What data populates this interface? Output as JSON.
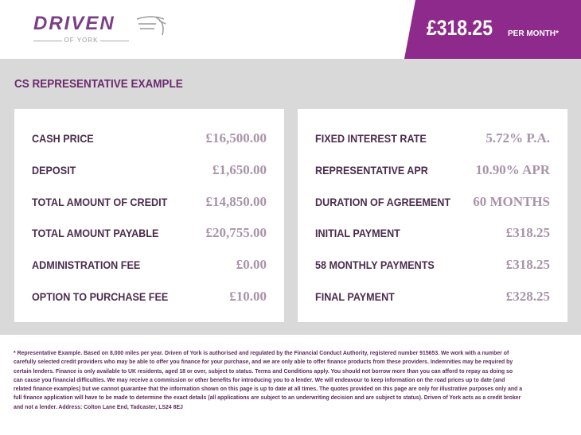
{
  "brand": {
    "name": "DRIVEN",
    "sub": "OF YORK"
  },
  "banner": {
    "price": "£318.25",
    "suffix": "PER MONTH*",
    "color": "#8e2a8b"
  },
  "section_title": "CS REPRESENTATIVE EXAMPLE",
  "left": [
    {
      "label": "CASH PRICE",
      "value": "£16,500.00"
    },
    {
      "label": "DEPOSIT",
      "value": "£1,650.00"
    },
    {
      "label": "TOTAL AMOUNT OF CREDIT",
      "value": "£14,850.00"
    },
    {
      "label": "TOTAL AMOUNT PAYABLE",
      "value": "£20,755.00"
    },
    {
      "label": "ADMINISTRATION FEE",
      "value": "£0.00"
    },
    {
      "label": "OPTION TO PURCHASE FEE",
      "value": "£10.00"
    }
  ],
  "right": [
    {
      "label": "FIXED INTEREST RATE",
      "value": "5.72% P.A."
    },
    {
      "label": "REPRESENTATIVE APR",
      "value": "10.90% APR"
    },
    {
      "label": "DURATION OF AGREEMENT",
      "value": "60 MONTHS"
    },
    {
      "label": "INITIAL PAYMENT",
      "value": "£318.25"
    },
    {
      "label": "58 MONTHLY PAYMENTS",
      "value": "£318.25"
    },
    {
      "label": "FINAL PAYMENT",
      "value": "£328.25"
    }
  ],
  "disclaimer": "* Representative Example. Based on 8,000 miles per year. Driven of York is authorised and regulated by the Financial Conduct Authority, registered number 915653. We work with a number of carefully selected credit providers who may be able to offer you finance for your purchase, and we are only able to offer finance products from these providers. Indemnities may be required by certain lenders. Finance is only available to UK residents, aged 18 or over, subject to status. Terms and Conditions apply. You should not borrow more than you can afford to repay as doing so can cause you financial difficulties. We may receive a commission or other benefits for introducing you to a lender. We will endeavour to keep information on the road prices up to date (and related finance examples) but we cannot guarantee that the information shown on this page is up to date at all times. The quotes provided on this page are only for illustrative purposes only and a full finance application will have to be made to determine the exact details (all applications are subject to an underwriting decision and are subject to status). Driven of York acts as a credit broker and not a lender. Address: Colton Lane End, Tadcaster, LS24 8EJ"
}
